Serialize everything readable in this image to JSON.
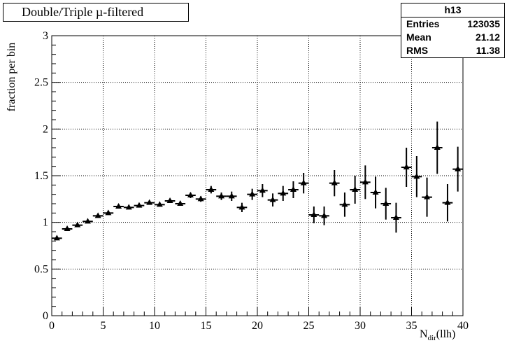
{
  "chart_data": {
    "type": "scatter",
    "title": "Double/Triple µ-filtered",
    "ylabel": "fraction per bin",
    "xlabel_main": "N",
    "xlabel_sub": "dir",
    "xlabel_suffix": "(llh)",
    "xlim": [
      0,
      40
    ],
    "ylim": [
      0,
      3
    ],
    "x_ticks": [
      "0",
      "5",
      "10",
      "15",
      "20",
      "25",
      "30",
      "35",
      "40"
    ],
    "y_ticks": [
      "0",
      "0.5",
      "1",
      "1.5",
      "2",
      "2.5",
      "3"
    ],
    "grid": true,
    "marker": "triangle",
    "stats": {
      "name": "h13",
      "entries_label": "Entries",
      "entries": "123035",
      "mean_label": "Mean",
      "mean": "21.12",
      "rms_label": "RMS",
      "rms": "11.38"
    },
    "points": [
      {
        "x": 0.5,
        "y": 0.83,
        "err": 0.01
      },
      {
        "x": 1.5,
        "y": 0.93,
        "err": 0.01
      },
      {
        "x": 2.5,
        "y": 0.97,
        "err": 0.01
      },
      {
        "x": 3.5,
        "y": 1.01,
        "err": 0.01
      },
      {
        "x": 4.5,
        "y": 1.07,
        "err": 0.015
      },
      {
        "x": 5.5,
        "y": 1.1,
        "err": 0.015
      },
      {
        "x": 6.5,
        "y": 1.17,
        "err": 0.015
      },
      {
        "x": 7.5,
        "y": 1.16,
        "err": 0.015
      },
      {
        "x": 8.5,
        "y": 1.18,
        "err": 0.015
      },
      {
        "x": 9.5,
        "y": 1.21,
        "err": 0.015
      },
      {
        "x": 10.5,
        "y": 1.19,
        "err": 0.02
      },
      {
        "x": 11.5,
        "y": 1.23,
        "err": 0.02
      },
      {
        "x": 12.5,
        "y": 1.2,
        "err": 0.02
      },
      {
        "x": 13.5,
        "y": 1.29,
        "err": 0.03
      },
      {
        "x": 14.5,
        "y": 1.25,
        "err": 0.03
      },
      {
        "x": 15.5,
        "y": 1.35,
        "err": 0.04
      },
      {
        "x": 16.5,
        "y": 1.28,
        "err": 0.04
      },
      {
        "x": 17.5,
        "y": 1.28,
        "err": 0.05
      },
      {
        "x": 18.5,
        "y": 1.16,
        "err": 0.05
      },
      {
        "x": 19.5,
        "y": 1.3,
        "err": 0.06
      },
      {
        "x": 20.5,
        "y": 1.34,
        "err": 0.07
      },
      {
        "x": 21.5,
        "y": 1.24,
        "err": 0.07
      },
      {
        "x": 22.5,
        "y": 1.31,
        "err": 0.08
      },
      {
        "x": 23.5,
        "y": 1.35,
        "err": 0.09
      },
      {
        "x": 24.5,
        "y": 1.42,
        "err": 0.11
      },
      {
        "x": 25.5,
        "y": 1.08,
        "err": 0.09
      },
      {
        "x": 26.5,
        "y": 1.07,
        "err": 0.1
      },
      {
        "x": 27.5,
        "y": 1.42,
        "err": 0.14
      },
      {
        "x": 28.5,
        "y": 1.19,
        "err": 0.13
      },
      {
        "x": 29.5,
        "y": 1.35,
        "err": 0.15
      },
      {
        "x": 30.5,
        "y": 1.43,
        "err": 0.18
      },
      {
        "x": 31.5,
        "y": 1.32,
        "err": 0.17
      },
      {
        "x": 32.5,
        "y": 1.2,
        "err": 0.17
      },
      {
        "x": 33.5,
        "y": 1.05,
        "err": 0.16
      },
      {
        "x": 34.5,
        "y": 1.59,
        "err": 0.21
      },
      {
        "x": 35.5,
        "y": 1.49,
        "err": 0.22
      },
      {
        "x": 36.5,
        "y": 1.27,
        "err": 0.21
      },
      {
        "x": 37.5,
        "y": 1.8,
        "err": 0.28
      },
      {
        "x": 38.5,
        "y": 1.21,
        "err": 0.2
      },
      {
        "x": 39.5,
        "y": 1.57,
        "err": 0.24
      }
    ]
  }
}
